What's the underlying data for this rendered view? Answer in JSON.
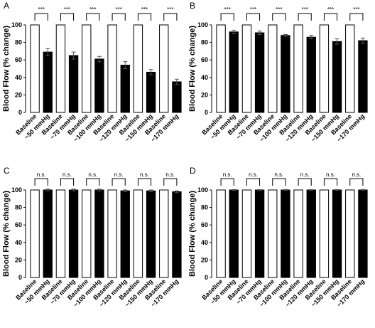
{
  "chart_data": [
    {
      "type": "bar",
      "label": "A",
      "y_label": "Blood Flow (% change)",
      "categories": [
        "Baseline",
        "−50 mmHg",
        "Baseline",
        "−70 mmHg",
        "Baseline",
        "−100 mmHg",
        "Baseline",
        "−120 mmHg",
        "Baseline",
        "−150 mmHg",
        "Baseline",
        "−170 mmHg"
      ],
      "values": [
        100,
        69,
        100,
        65,
        100,
        61,
        100,
        54,
        100,
        46,
        100,
        35
      ],
      "errors": [
        null,
        4,
        null,
        4,
        null,
        3,
        null,
        4,
        null,
        3,
        null,
        3
      ],
      "bar_colors": [
        "#ffffff",
        "#000000",
        "#ffffff",
        "#000000",
        "#ffffff",
        "#000000",
        "#ffffff",
        "#000000",
        "#ffffff",
        "#000000",
        "#ffffff",
        "#000000"
      ],
      "significance": [
        "***",
        "***",
        "***",
        "***",
        "***",
        "***"
      ],
      "ylim": [
        0,
        100
      ],
      "yticks": [
        0,
        20,
        40,
        60,
        80,
        100
      ]
    },
    {
      "type": "bar",
      "label": "B",
      "y_label": "Blood Flow (% change)",
      "categories": [
        "Baseline",
        "−50 mmHg",
        "Baseline",
        "−70 mmHg",
        "Baseline",
        "−100 mmHg",
        "Baseline",
        "−120 mmHg",
        "Baseline",
        "−150 mmHg",
        "Baseline",
        "−170 mmHg"
      ],
      "values": [
        100,
        92,
        100,
        91,
        100,
        88,
        100,
        86,
        100,
        81,
        100,
        82
      ],
      "errors": [
        null,
        2,
        null,
        2,
        null,
        1,
        null,
        2,
        null,
        3,
        null,
        3
      ],
      "bar_colors": [
        "#ffffff",
        "#000000",
        "#ffffff",
        "#000000",
        "#ffffff",
        "#000000",
        "#ffffff",
        "#000000",
        "#ffffff",
        "#000000",
        "#ffffff",
        "#000000"
      ],
      "significance": [
        "***",
        "***",
        "***",
        "***",
        "***",
        "***"
      ],
      "ylim": [
        0,
        100
      ],
      "yticks": [
        0,
        20,
        40,
        60,
        80,
        100
      ]
    },
    {
      "type": "bar",
      "label": "C",
      "y_label": "Blood Flow (% change)",
      "categories": [
        "Baseline",
        "−50 mmHg",
        "Baseline",
        "−70 mmHg",
        "Baseline",
        "−100 mmHg",
        "Baseline",
        "−120 mmHg",
        "Baseline",
        "−150 mmHg",
        "Baseline",
        "−170 mmHg"
      ],
      "values": [
        100,
        100,
        100,
        100,
        100,
        100,
        100,
        99,
        100,
        99,
        100,
        98
      ],
      "errors": [
        null,
        1,
        null,
        1,
        null,
        1,
        null,
        1,
        null,
        1,
        null,
        1
      ],
      "bar_colors": [
        "#ffffff",
        "#000000",
        "#ffffff",
        "#000000",
        "#ffffff",
        "#000000",
        "#ffffff",
        "#000000",
        "#ffffff",
        "#000000",
        "#ffffff",
        "#000000"
      ],
      "significance": [
        "n.s.",
        "n.s.",
        "n.s.",
        "n.s.",
        "n.s.",
        "n.s."
      ],
      "ylim": [
        0,
        100
      ],
      "yticks": [
        0,
        20,
        40,
        60,
        80,
        100
      ]
    },
    {
      "type": "bar",
      "label": "D",
      "y_label": "Blood Flow (% change)",
      "categories": [
        "Baseline",
        "−50 mmHg",
        "Baseline",
        "−70 mmHg",
        "Baseline",
        "−100 mmHg",
        "Baseline",
        "−120 mmHg",
        "Baseline",
        "−150 mmHg",
        "Baseline",
        "−170 mmHg"
      ],
      "values": [
        100,
        100,
        100,
        100,
        100,
        100,
        100,
        100,
        100,
        100,
        100,
        100
      ],
      "errors": [
        null,
        0.5,
        null,
        0.5,
        null,
        0.5,
        null,
        0.5,
        null,
        0.5,
        null,
        0.5
      ],
      "bar_colors": [
        "#ffffff",
        "#000000",
        "#ffffff",
        "#000000",
        "#ffffff",
        "#000000",
        "#ffffff",
        "#000000",
        "#ffffff",
        "#000000",
        "#ffffff",
        "#000000"
      ],
      "significance": [
        "n.s.",
        "n.s.",
        "n.s.",
        "n.s.",
        "n.s.",
        "n.s."
      ],
      "ylim": [
        0,
        100
      ],
      "yticks": [
        0,
        20,
        40,
        60,
        80,
        100
      ]
    }
  ]
}
